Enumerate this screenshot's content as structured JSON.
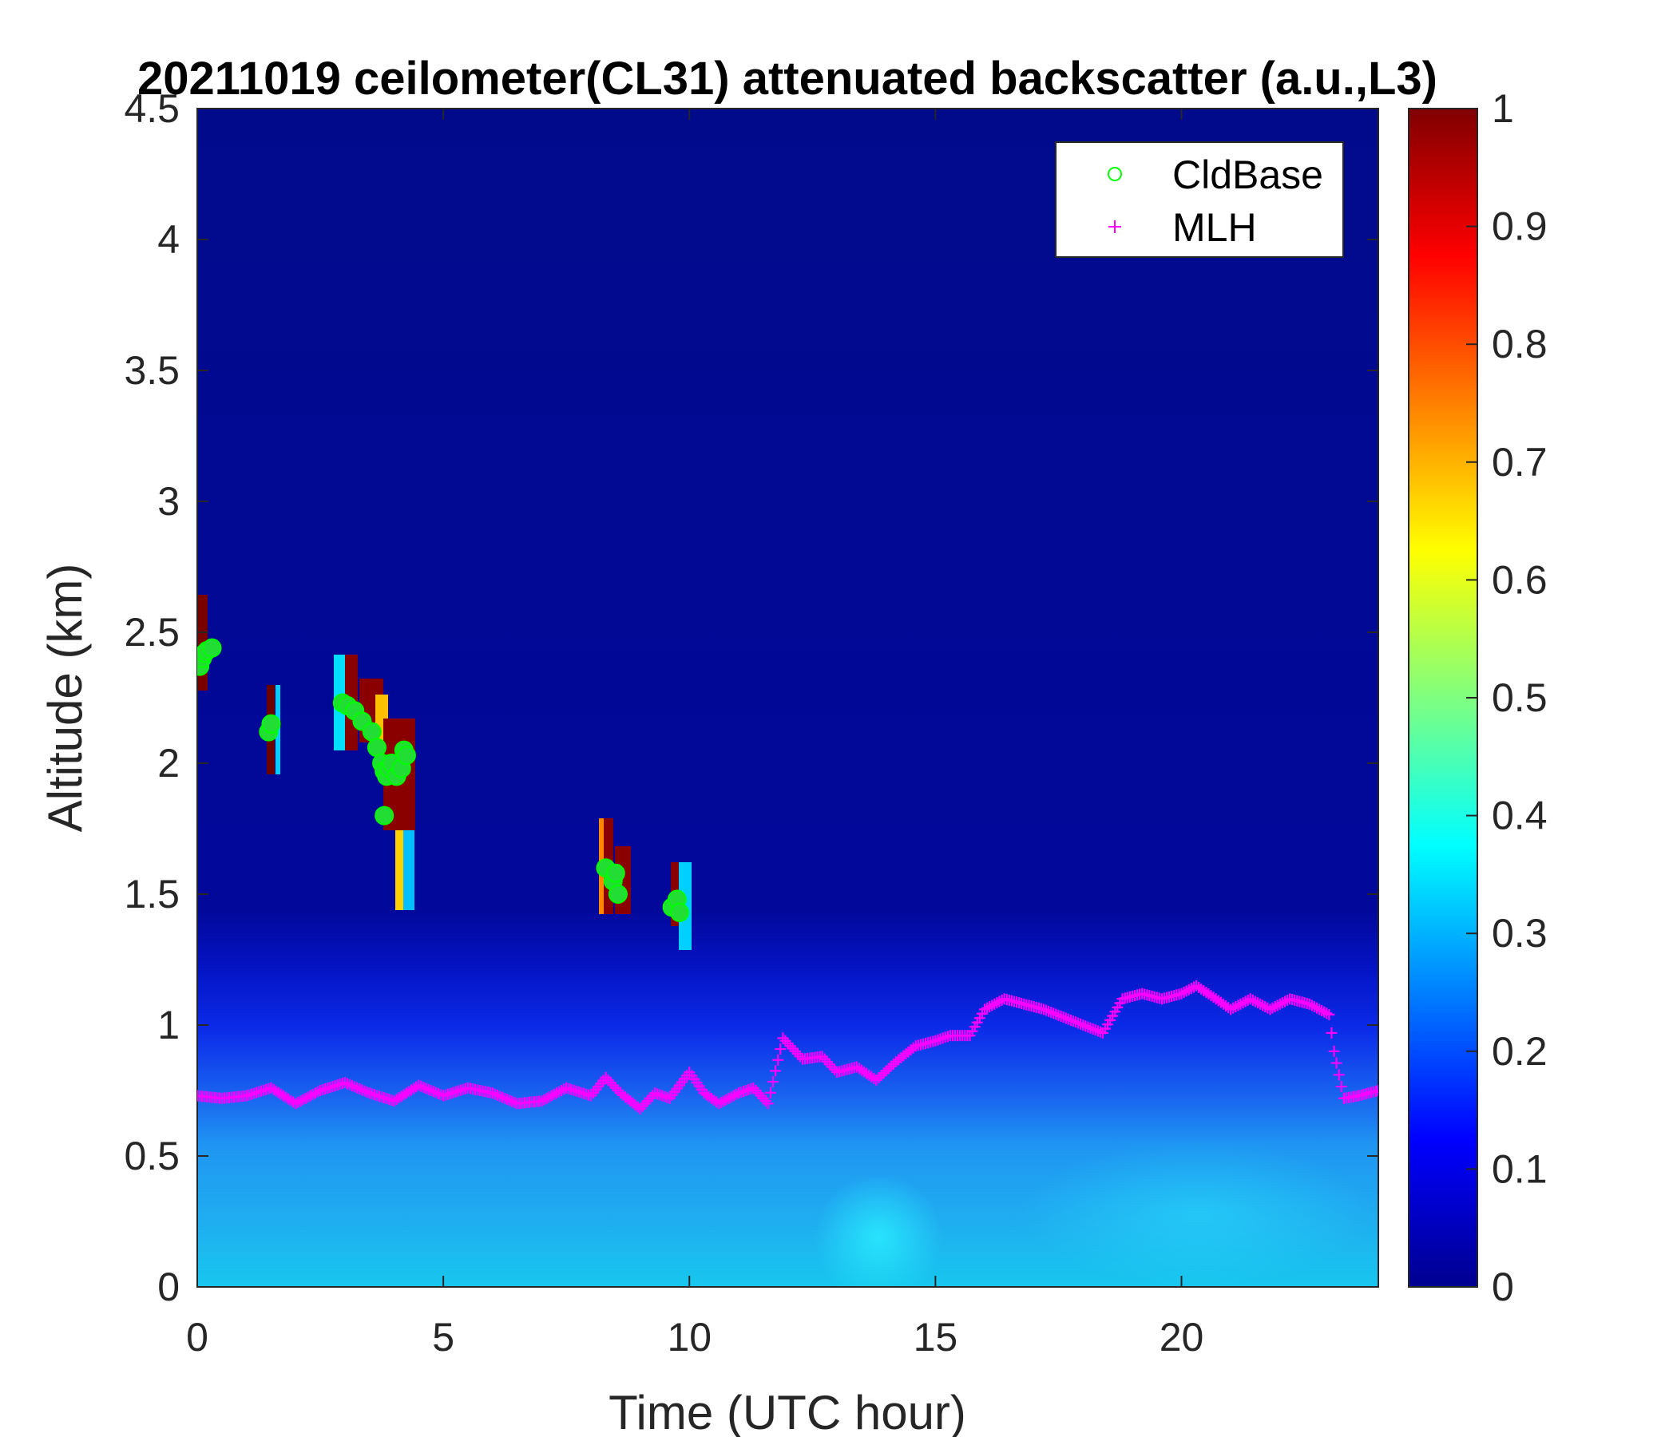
{
  "chart_data": {
    "type": "heatmap",
    "title": "20211019 ceilometer(CL31) attenuated backscatter (a.u.,L3)",
    "xlabel": "Time (UTC hour)",
    "ylabel": "Altitude (km)",
    "xlim": [
      0,
      24
    ],
    "ylim": [
      0,
      4.5
    ],
    "xticks": [
      "0",
      "5",
      "10",
      "15",
      "20"
    ],
    "yticks": [
      "0",
      "0.5",
      "1",
      "1.5",
      "2",
      "2.5",
      "3",
      "3.5",
      "4",
      "4.5"
    ],
    "colorbar": {
      "range": [
        0,
        1
      ],
      "ticks": [
        "0",
        "0.1",
        "0.2",
        "0.3",
        "0.4",
        "0.5",
        "0.6",
        "0.7",
        "0.8",
        "0.9",
        "1"
      ],
      "colormap": "jet"
    },
    "legend": {
      "position": "top-right",
      "entries": [
        {
          "label": "CldBase",
          "marker": "circle",
          "color": "#00ff00"
        },
        {
          "label": "MLH",
          "marker": "plus",
          "color": "#ff00ff"
        }
      ]
    },
    "series": [
      {
        "name": "CldBase",
        "x": [
          0.05,
          0.1,
          0.15,
          0.2,
          0.3,
          1.45,
          1.5,
          2.95,
          3.05,
          3.2,
          3.35,
          3.55,
          3.65,
          3.75,
          3.8,
          3.85,
          3.9,
          3.95,
          4.05,
          4.15,
          4.2,
          4.25,
          3.8,
          8.3,
          8.45,
          8.5,
          8.55,
          9.65,
          9.75,
          9.8
        ],
        "y": [
          2.37,
          2.4,
          2.42,
          2.43,
          2.44,
          2.12,
          2.15,
          2.23,
          2.22,
          2.2,
          2.16,
          2.12,
          2.06,
          2.0,
          1.97,
          1.95,
          1.98,
          2.0,
          1.95,
          1.98,
          2.05,
          2.03,
          1.8,
          1.6,
          1.55,
          1.58,
          1.5,
          1.45,
          1.48,
          1.43
        ]
      },
      {
        "name": "MLH",
        "x": [
          0,
          0.5,
          1,
          1.5,
          2,
          2.5,
          3,
          3.5,
          4,
          4.5,
          5,
          5.5,
          6,
          6.5,
          7,
          7.5,
          8,
          8.3,
          8.6,
          9,
          9.3,
          9.6,
          10,
          10.3,
          10.6,
          11,
          11.3,
          11.6,
          11.9,
          12.3,
          12.7,
          13,
          13.4,
          13.8,
          14.2,
          14.6,
          15,
          15.3,
          15.7,
          16,
          16.4,
          16.8,
          17.2,
          17.6,
          18,
          18.4,
          18.8,
          19.2,
          19.6,
          20,
          20.3,
          20.7,
          21,
          21.4,
          21.8,
          22.2,
          22.6,
          23,
          23.1,
          23.3,
          23.6,
          24
        ],
        "y": [
          0.73,
          0.72,
          0.73,
          0.76,
          0.7,
          0.75,
          0.78,
          0.74,
          0.71,
          0.77,
          0.73,
          0.76,
          0.74,
          0.7,
          0.71,
          0.76,
          0.73,
          0.8,
          0.74,
          0.68,
          0.74,
          0.72,
          0.82,
          0.74,
          0.7,
          0.74,
          0.76,
          0.7,
          0.95,
          0.87,
          0.88,
          0.82,
          0.84,
          0.79,
          0.86,
          0.92,
          0.94,
          0.96,
          0.96,
          1.06,
          1.1,
          1.08,
          1.06,
          1.03,
          1.0,
          0.97,
          1.1,
          1.12,
          1.1,
          1.12,
          1.15,
          1.1,
          1.06,
          1.1,
          1.06,
          1.1,
          1.08,
          1.04,
          0.9,
          0.72,
          0.73,
          0.75
        ]
      }
    ]
  }
}
